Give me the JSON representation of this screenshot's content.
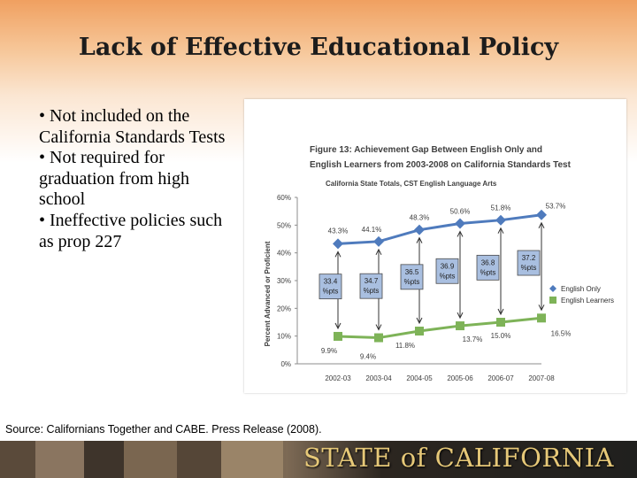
{
  "slide": {
    "title": "Lack of Effective Educational Policy",
    "bullets": [
      "• Not included on the California Standards Tests",
      "• Not required for graduation from high school",
      "• Ineffective policies such as prop 227"
    ],
    "source": "Source: Californians Together and CABE.  Press Release (2008).",
    "footer_banner": "STATE of CALIFORNIA"
  },
  "colors": {
    "english_only": "#4f7bbd",
    "english_learners": "#7eb358",
    "banner_text": "#e6c878"
  },
  "chart_data": {
    "type": "line",
    "title": "Figure 13:  Achievement Gap Between English Only and English Learners from 2003-2008 on California Standards Test",
    "title_lines": [
      "Figure 13:  Achievement Gap Between English Only and",
      "English Learners from 2003-2008 on California Standards Test"
    ],
    "subtitle": "California State Totals, CST English Language Arts",
    "ylabel": "Percent Advanced or Proficient",
    "xlabel": "",
    "ylim": [
      0,
      60
    ],
    "yticks": [
      "0%",
      "10%",
      "20%",
      "30%",
      "40%",
      "50%",
      "60%"
    ],
    "grid": false,
    "legend_position": "right",
    "categories": [
      "2002-03",
      "2003-04",
      "2004-05",
      "2005-06",
      "2006-07",
      "2007-08"
    ],
    "series": [
      {
        "name": "English Only",
        "values": [
          43.3,
          44.1,
          48.3,
          50.6,
          51.8,
          53.7
        ],
        "labels": [
          "43.3%",
          "44.1%",
          "48.3%",
          "50.6%",
          "51.8%",
          "53.7%"
        ]
      },
      {
        "name": "English Learners",
        "values": [
          9.9,
          9.4,
          11.8,
          13.7,
          15.0,
          16.5
        ],
        "labels": [
          "9.9%",
          "9.4%",
          "11.8%",
          "13.7%",
          "15.0%",
          "16.5%"
        ]
      }
    ],
    "gaps": [
      {
        "value": "33.4",
        "unit": "%pts"
      },
      {
        "value": "34.7",
        "unit": "%pts"
      },
      {
        "value": "36.5",
        "unit": "%pts"
      },
      {
        "value": "36.9",
        "unit": "%pts"
      },
      {
        "value": "36.8",
        "unit": "%pts"
      },
      {
        "value": "37.2",
        "unit": "%pts"
      }
    ]
  }
}
